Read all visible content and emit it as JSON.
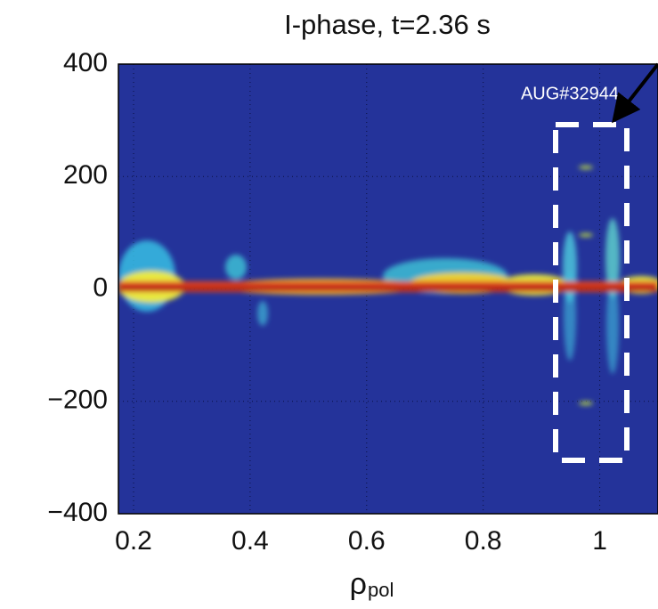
{
  "chart_data": {
    "type": "heatmap",
    "title": "I-phase, t=2.36 s",
    "xlabel": "ρ",
    "xlabel_sub": "pol",
    "annotation": "AUG#32944",
    "xlim": [
      0.174,
      1.1
    ],
    "ylim": [
      -400,
      400
    ],
    "xticks": [
      0.2,
      0.4,
      0.6,
      0.8,
      1
    ],
    "yticks": [
      400,
      200,
      0,
      {
        "value": -200,
        "label": "−200"
      },
      {
        "value": -400,
        "label": "−400"
      }
    ],
    "grid": true,
    "background": "#24339a"
  }
}
